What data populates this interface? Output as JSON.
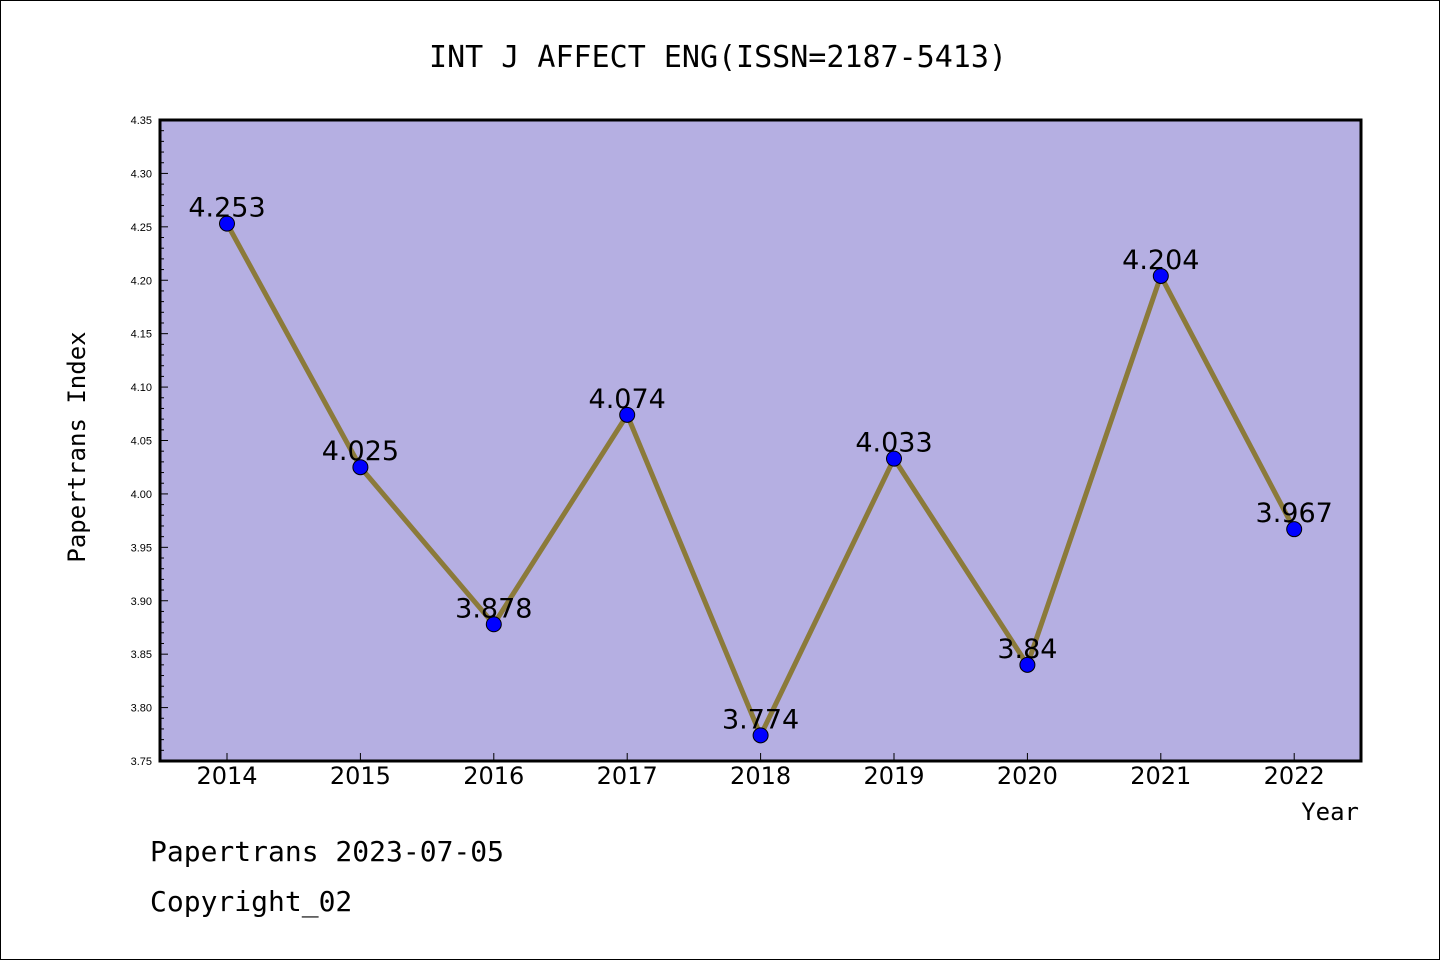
{
  "chart_data": {
    "type": "line",
    "title": "INT J AFFECT ENG(ISSN=2187-5413)",
    "xlabel": "Year",
    "ylabel": "Papertrans Index",
    "x": [
      "2014",
      "2015",
      "2016",
      "2017",
      "2018",
      "2019",
      "2020",
      "2021",
      "2022"
    ],
    "values": [
      4.253,
      4.025,
      3.878,
      4.074,
      3.774,
      4.033,
      3.84,
      4.204,
      3.967
    ],
    "data_labels": [
      "4.253",
      "4.025",
      "3.878",
      "4.074",
      "3.774",
      "4.033",
      "3.84",
      "4.204",
      "3.967"
    ],
    "ylim": [
      3.75,
      4.35
    ],
    "yticks": [
      "3.75",
      "3.80",
      "3.85",
      "3.90",
      "3.95",
      "4.00",
      "4.05",
      "4.10",
      "4.15",
      "4.20",
      "4.25",
      "4.30",
      "4.35"
    ],
    "colors": {
      "plot_background": "#b5afe2",
      "line": "#8b7a3a",
      "marker": "#0000ff"
    },
    "grid": false
  },
  "footer": {
    "line1": "Papertrans 2023-07-05",
    "line2": "Copyright_02"
  }
}
